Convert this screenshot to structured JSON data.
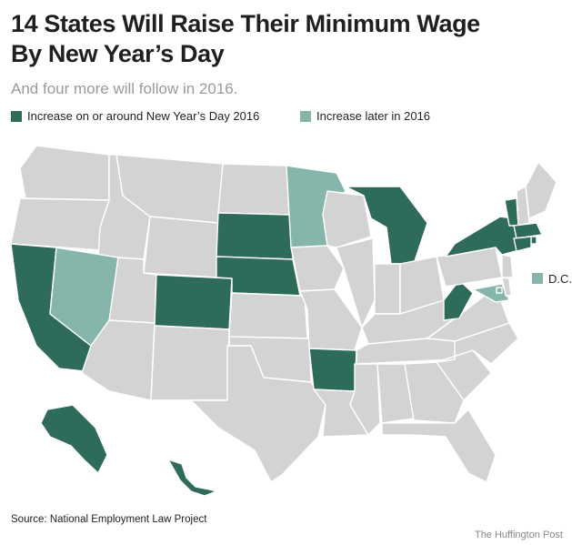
{
  "title_lines": [
    "14 States Will Raise Their Minimum Wage",
    "By New Year’s Day"
  ],
  "subtitle": "And four more will follow in 2016.",
  "legend": [
    {
      "label": "Increase on or around New Year’s Day 2016",
      "color": "#2e6b5b"
    },
    {
      "label": "Increase later in 2016",
      "color": "#85b5ab"
    }
  ],
  "dc_label": "D.C.",
  "source": "Source: National Employment Law Project",
  "credit": "The Huffington Post",
  "colors": {
    "new_year": "#2e6b5b",
    "later": "#85b5ab",
    "none": "#d3d3d3",
    "border": "#ffffff"
  },
  "states": {
    "new_year": [
      "Alaska",
      "Arkansas",
      "California",
      "Colorado",
      "Connecticut",
      "Hawaii",
      "Massachusetts",
      "Michigan",
      "Nebraska",
      "New York",
      "Rhode Island",
      "South Dakota",
      "Vermont",
      "West Virginia"
    ],
    "later": [
      "District of Columbia",
      "Maryland",
      "Minnesota",
      "Nevada"
    ]
  }
}
